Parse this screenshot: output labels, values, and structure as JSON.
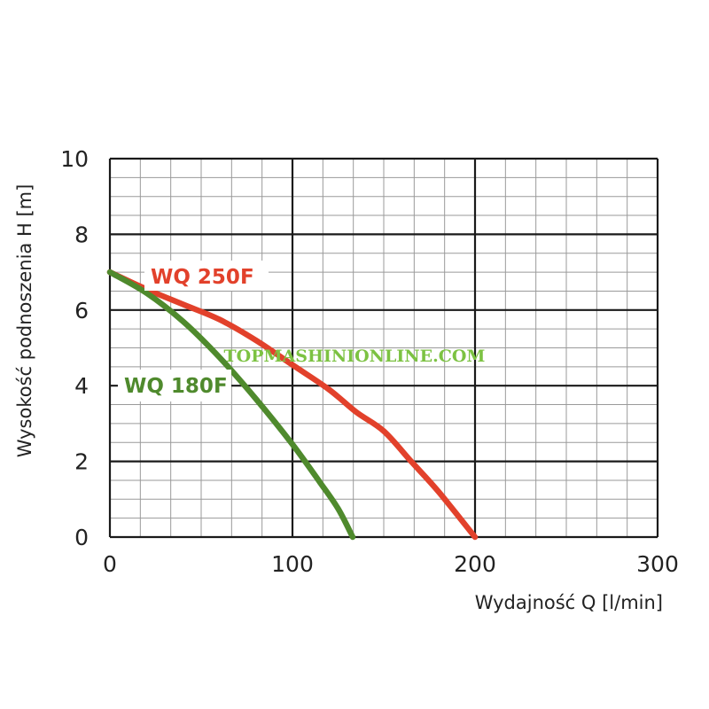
{
  "chart_data": {
    "type": "line",
    "title": "",
    "xlabel": "Wydajność Q [l/min]",
    "ylabel": "Wysokość podnoszenia H [m]",
    "xlim": [
      0,
      300
    ],
    "ylim": [
      0,
      10
    ],
    "x_major_ticks": [
      "0",
      "100",
      "200",
      "300"
    ],
    "y_major_ticks": [
      "0",
      "2",
      "4",
      "6",
      "8",
      "10"
    ],
    "x_minor_step": 16.667,
    "y_minor_step": 0.5,
    "grid": true,
    "series": [
      {
        "name": "WQ 250F",
        "color": "#e2412b",
        "points": [
          [
            0,
            7.0
          ],
          [
            20,
            6.55
          ],
          [
            40,
            6.15
          ],
          [
            60,
            5.75
          ],
          [
            80,
            5.2
          ],
          [
            100,
            4.55
          ],
          [
            120,
            3.9
          ],
          [
            135,
            3.3
          ],
          [
            150,
            2.8
          ],
          [
            165,
            2.0
          ],
          [
            180,
            1.2
          ],
          [
            200,
            0.0
          ]
        ]
      },
      {
        "name": "WQ 180F",
        "color": "#4f8a2d",
        "points": [
          [
            0,
            7.0
          ],
          [
            20,
            6.45
          ],
          [
            40,
            5.7
          ],
          [
            60,
            4.75
          ],
          [
            80,
            3.65
          ],
          [
            100,
            2.45
          ],
          [
            115,
            1.45
          ],
          [
            125,
            0.75
          ],
          [
            133,
            0.0
          ]
        ]
      }
    ],
    "watermark": {
      "text": "TOPMASHINIONLINE.COM",
      "color": "#7cc242"
    }
  }
}
